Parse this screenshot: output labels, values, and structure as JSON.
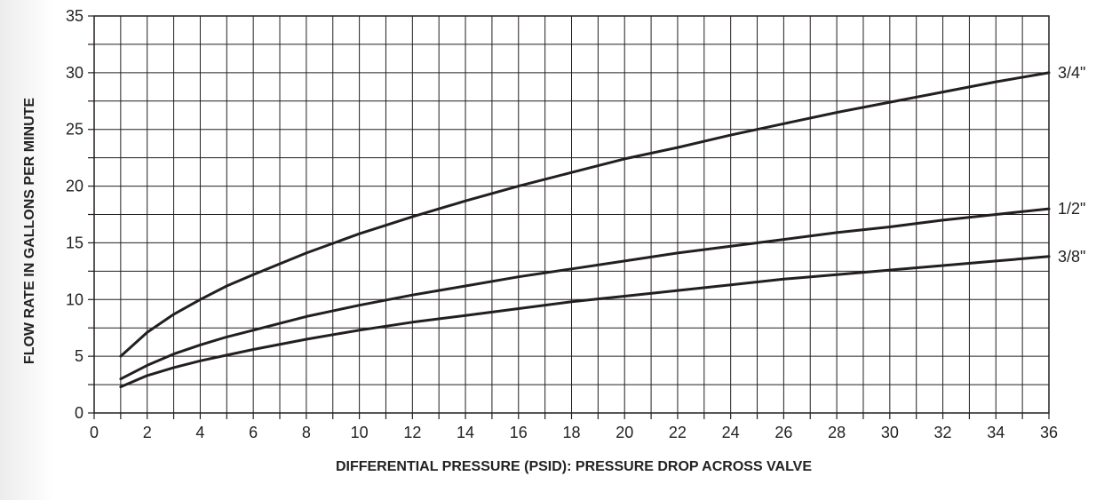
{
  "chart_data": {
    "type": "line",
    "title": "",
    "xlabel": "DIFFERENTIAL PRESSURE (PSID): PRESSURE DROP ACROSS VALVE",
    "ylabel": "FLOW RATE IN GALLONS PER MINUTE",
    "xlim": [
      0,
      36
    ],
    "ylim": [
      0,
      35
    ],
    "x_ticks": [
      0,
      2,
      4,
      6,
      8,
      10,
      12,
      14,
      16,
      18,
      20,
      22,
      24,
      26,
      28,
      30,
      32,
      34,
      36
    ],
    "y_ticks": [
      0,
      5,
      10,
      15,
      20,
      25,
      30,
      35
    ],
    "grid": true,
    "legend": "series labels at right end of lines",
    "line_color": "#231f20",
    "series": [
      {
        "name": "3/4\"",
        "x": [
          1,
          2,
          3,
          4,
          5,
          6,
          8,
          10,
          12,
          14,
          16,
          18,
          20,
          22,
          24,
          26,
          28,
          30,
          32,
          34,
          36
        ],
        "values": [
          5.0,
          7.1,
          8.7,
          10.0,
          11.2,
          12.2,
          14.1,
          15.8,
          17.3,
          18.7,
          20.0,
          21.2,
          22.4,
          23.4,
          24.5,
          25.5,
          26.5,
          27.4,
          28.3,
          29.2,
          30.0
        ]
      },
      {
        "name": "1/2\"",
        "x": [
          1,
          2,
          3,
          4,
          5,
          6,
          8,
          10,
          12,
          14,
          16,
          18,
          20,
          22,
          24,
          26,
          28,
          30,
          32,
          34,
          36
        ],
        "values": [
          3.0,
          4.2,
          5.2,
          6.0,
          6.7,
          7.3,
          8.5,
          9.5,
          10.4,
          11.2,
          12.0,
          12.7,
          13.4,
          14.1,
          14.7,
          15.3,
          15.9,
          16.4,
          17.0,
          17.5,
          18.0
        ]
      },
      {
        "name": "3/8\"",
        "x": [
          1,
          2,
          3,
          4,
          5,
          6,
          8,
          10,
          12,
          14,
          16,
          18,
          20,
          22,
          24,
          26,
          28,
          30,
          32,
          34,
          36
        ],
        "values": [
          2.3,
          3.3,
          4.0,
          4.6,
          5.1,
          5.6,
          6.5,
          7.3,
          8.0,
          8.6,
          9.2,
          9.8,
          10.3,
          10.8,
          11.3,
          11.8,
          12.2,
          12.6,
          13.0,
          13.4,
          13.8
        ]
      }
    ]
  }
}
